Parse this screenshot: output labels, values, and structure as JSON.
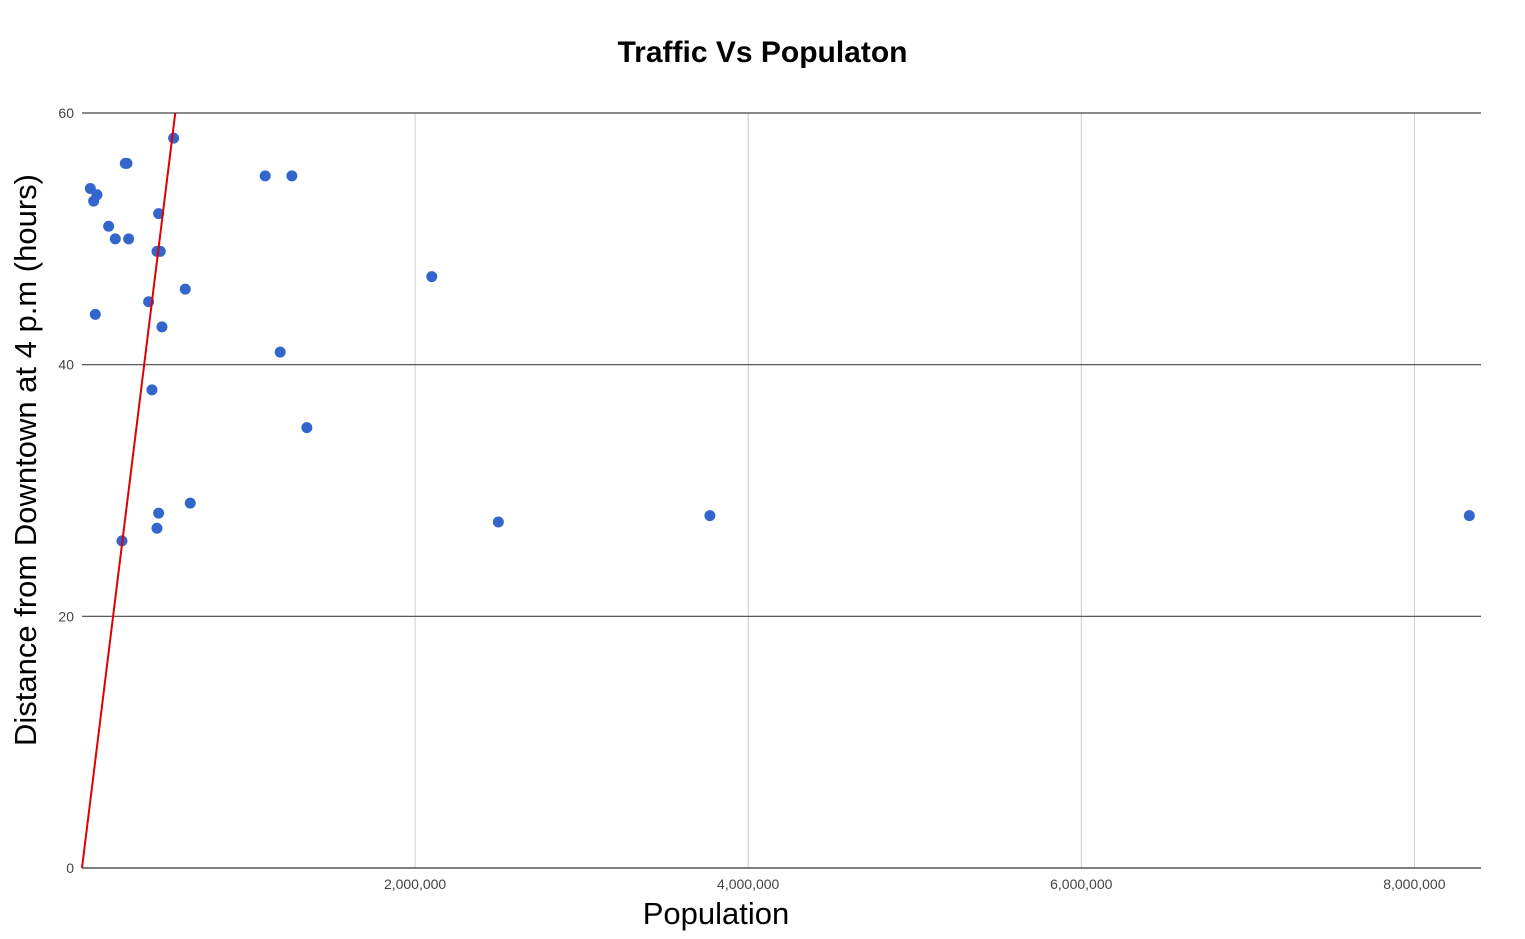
{
  "chart_data": {
    "type": "scatter",
    "title": "Traffic Vs Populaton",
    "xlabel": "Population",
    "ylabel": "Distance from Downtown at 4 p.m (hours)",
    "xlim": [
      0,
      8400000
    ],
    "ylim": [
      0,
      60
    ],
    "x_ticks": [
      2000000,
      4000000,
      6000000,
      8000000
    ],
    "x_tick_labels": [
      "2,000,000",
      "4,000,000",
      "6,000,000",
      "8,000,000"
    ],
    "y_ticks": [
      0,
      20,
      40,
      60
    ],
    "y_tick_labels": [
      "0",
      "20",
      "40",
      "60"
    ],
    "grid": true,
    "legend": "none",
    "point_color": "#3366cc",
    "trendline_color": "#e00000",
    "trendline": {
      "from": [
        0,
        0
      ],
      "to": [
        560000,
        60
      ]
    },
    "points": [
      {
        "x": 550000,
        "y": 58
      },
      {
        "x": 260000,
        "y": 56
      },
      {
        "x": 270000,
        "y": 56
      },
      {
        "x": 1100000,
        "y": 55
      },
      {
        "x": 1260000,
        "y": 55
      },
      {
        "x": 50000,
        "y": 54
      },
      {
        "x": 90000,
        "y": 53.5
      },
      {
        "x": 70000,
        "y": 53
      },
      {
        "x": 460000,
        "y": 52
      },
      {
        "x": 160000,
        "y": 51
      },
      {
        "x": 200000,
        "y": 50
      },
      {
        "x": 280000,
        "y": 50
      },
      {
        "x": 450000,
        "y": 49
      },
      {
        "x": 470000,
        "y": 49
      },
      {
        "x": 2100000,
        "y": 47
      },
      {
        "x": 620000,
        "y": 46
      },
      {
        "x": 400000,
        "y": 45
      },
      {
        "x": 80000,
        "y": 44
      },
      {
        "x": 480000,
        "y": 43
      },
      {
        "x": 1190000,
        "y": 41
      },
      {
        "x": 420000,
        "y": 38
      },
      {
        "x": 1350000,
        "y": 35
      },
      {
        "x": 650000,
        "y": 29
      },
      {
        "x": 460000,
        "y": 28.2
      },
      {
        "x": 3770000,
        "y": 28
      },
      {
        "x": 8330000,
        "y": 28
      },
      {
        "x": 2500000,
        "y": 27.5
      },
      {
        "x": 450000,
        "y": 27
      },
      {
        "x": 240000,
        "y": 26
      }
    ]
  }
}
